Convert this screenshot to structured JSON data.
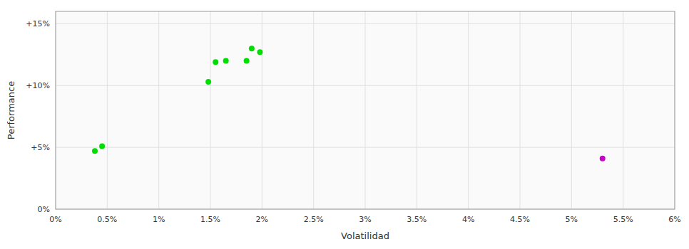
{
  "chart_data": {
    "type": "scatter",
    "xlabel": "Volatilidad",
    "ylabel": "Performance",
    "xlim": [
      0.0,
      0.06
    ],
    "ylim": [
      0.0,
      0.16
    ],
    "xticks": [
      {
        "value": 0.0,
        "label": "0%"
      },
      {
        "value": 0.005,
        "label": "0.5%"
      },
      {
        "value": 0.01,
        "label": "1%"
      },
      {
        "value": 0.015,
        "label": "1.5%"
      },
      {
        "value": 0.02,
        "label": "2%"
      },
      {
        "value": 0.025,
        "label": "2.5%"
      },
      {
        "value": 0.03,
        "label": "3%"
      },
      {
        "value": 0.035,
        "label": "3.5%"
      },
      {
        "value": 0.04,
        "label": "4%"
      },
      {
        "value": 0.045,
        "label": "4.5%"
      },
      {
        "value": 0.05,
        "label": "5%"
      },
      {
        "value": 0.055,
        "label": "5.5%"
      },
      {
        "value": 0.06,
        "label": "6%"
      }
    ],
    "yticks": [
      {
        "value": 0.0,
        "label": "0%"
      },
      {
        "value": 0.05,
        "label": "+5%"
      },
      {
        "value": 0.1,
        "label": "+10%"
      },
      {
        "value": 0.15,
        "label": "+15%"
      }
    ],
    "grid": true,
    "series": [
      {
        "color": "#00dd00",
        "x": [
          0.0038,
          0.0045,
          0.0148,
          0.0155,
          0.0165,
          0.0185,
          0.019,
          0.0198
        ],
        "values": [
          0.047,
          0.051,
          0.103,
          0.119,
          0.12,
          0.12,
          0.13,
          0.127
        ]
      },
      {
        "color": "#cc00cc",
        "x": [
          0.053
        ],
        "values": [
          0.041
        ]
      }
    ]
  }
}
